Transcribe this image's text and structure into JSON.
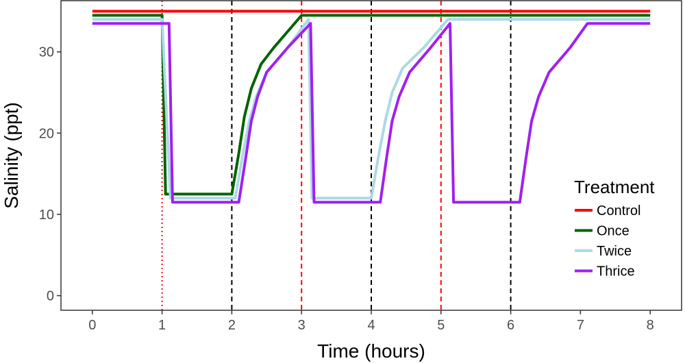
{
  "chart_data": {
    "type": "line",
    "xlabel": "Time (hours)",
    "ylabel": "Salinity (ppt)",
    "xlim": [
      -0.45,
      8.45
    ],
    "ylim": [
      -1.8,
      36.3
    ],
    "x_ticks": [
      0,
      1,
      2,
      3,
      4,
      5,
      6,
      7,
      8
    ],
    "y_ticks": [
      0,
      10,
      20,
      30
    ],
    "grid": false,
    "legend": {
      "title": "Treatment",
      "placement": "right"
    },
    "vertical_lines": [
      {
        "x": 1,
        "color": "#ff0000",
        "style": "dotted"
      },
      {
        "x": 2,
        "color": "#000000",
        "style": "dashed"
      },
      {
        "x": 3,
        "color": "#ff0000",
        "style": "dashed"
      },
      {
        "x": 4,
        "color": "#000000",
        "style": "dashed"
      },
      {
        "x": 5,
        "color": "#ff0000",
        "style": "dashed"
      },
      {
        "x": 6,
        "color": "#000000",
        "style": "dashed"
      }
    ],
    "series": [
      {
        "name": "Control",
        "color": "#ff0000",
        "points": [
          [
            0,
            35
          ],
          [
            8,
            35
          ]
        ]
      },
      {
        "name": "Once",
        "color": "#006400",
        "points": [
          [
            0,
            34.5
          ],
          [
            1,
            34.5
          ],
          [
            1.05,
            12.5
          ],
          [
            2,
            12.5
          ],
          [
            2.1,
            17.5
          ],
          [
            2.18,
            22
          ],
          [
            2.28,
            25.5
          ],
          [
            2.42,
            28.5
          ],
          [
            2.6,
            30.5
          ],
          [
            3,
            34.5
          ],
          [
            8,
            34.5
          ]
        ]
      },
      {
        "name": "Twice",
        "color": "#add8e6",
        "points": [
          [
            0,
            34
          ],
          [
            1,
            34
          ],
          [
            1.12,
            12
          ],
          [
            2.05,
            12
          ],
          [
            2.15,
            17
          ],
          [
            2.25,
            21.5
          ],
          [
            2.35,
            24.5
          ],
          [
            2.5,
            27.5
          ],
          [
            2.8,
            30.5
          ],
          [
            3.1,
            34
          ],
          [
            3.15,
            12
          ],
          [
            4,
            12
          ],
          [
            4.1,
            17
          ],
          [
            4.2,
            21.5
          ],
          [
            4.3,
            25
          ],
          [
            4.45,
            28
          ],
          [
            4.75,
            30.5
          ],
          [
            5.1,
            34
          ],
          [
            8,
            34
          ]
        ]
      },
      {
        "name": "Thrice",
        "color": "#a020f0",
        "points": [
          [
            0,
            33.5
          ],
          [
            1.1,
            33.5
          ],
          [
            1.15,
            11.5
          ],
          [
            2.1,
            11.5
          ],
          [
            2.2,
            17
          ],
          [
            2.28,
            21.5
          ],
          [
            2.37,
            24.5
          ],
          [
            2.5,
            27.5
          ],
          [
            2.8,
            30.5
          ],
          [
            3.13,
            33.5
          ],
          [
            3.18,
            11.5
          ],
          [
            4.13,
            11.5
          ],
          [
            4.22,
            17
          ],
          [
            4.3,
            21.5
          ],
          [
            4.4,
            24.5
          ],
          [
            4.55,
            27.5
          ],
          [
            4.85,
            30.5
          ],
          [
            5.13,
            33.5
          ],
          [
            5.18,
            11.5
          ],
          [
            6.13,
            11.5
          ],
          [
            6.22,
            17
          ],
          [
            6.3,
            21.5
          ],
          [
            6.4,
            24.5
          ],
          [
            6.55,
            27.5
          ],
          [
            6.85,
            30.5
          ],
          [
            7.1,
            33.5
          ],
          [
            8,
            33.5
          ]
        ]
      }
    ]
  }
}
